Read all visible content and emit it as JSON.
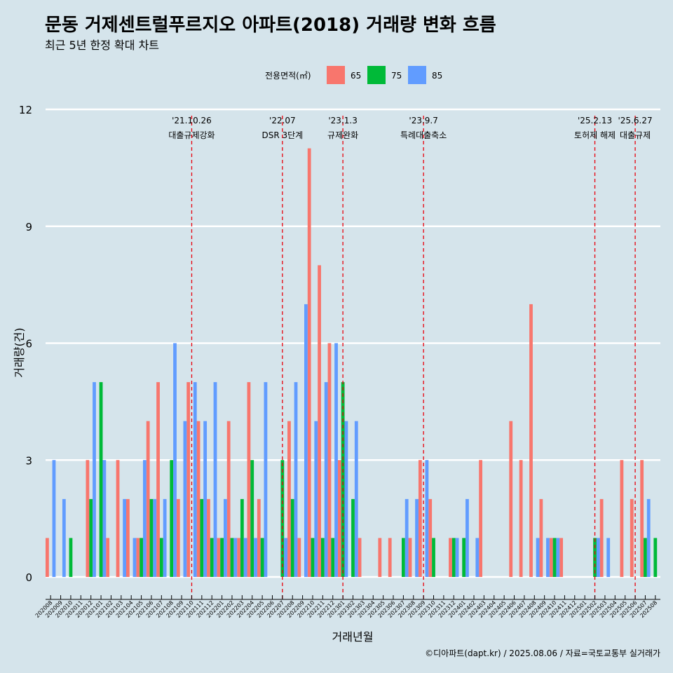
{
  "title": "문동 거제센트럴푸르지오 아파트(2018) 거래량 변화 흐름",
  "subtitle": "최근 5년 한정 확대 차트",
  "caption": "©디아파트(dapt.kr) / 2025.08.06 / 자료=국토교통부 실거래가",
  "colors": {
    "65": "#f8766d",
    "75": "#00ba38",
    "85": "#619cff",
    "background": "#d5e4eb",
    "grid": "#ffffff",
    "event_line": "#e8000b"
  },
  "chart_data": {
    "type": "bar",
    "xlabel": "거래년월",
    "ylabel": "거래량(건)",
    "ylim": [
      0,
      12
    ],
    "y_ticks": [
      0,
      3,
      6,
      9,
      12
    ],
    "grid": true,
    "legend": {
      "title": "전용면적(㎡)",
      "placement": "top",
      "entries": [
        "65",
        "75",
        "85"
      ]
    },
    "categories": [
      "202008",
      "202009",
      "202010",
      "202011",
      "202012",
      "202101",
      "202102",
      "202103",
      "202104",
      "202105",
      "202106",
      "202107",
      "202108",
      "202109",
      "202110",
      "202111",
      "202112",
      "202201",
      "202202",
      "202203",
      "202204",
      "202205",
      "202206",
      "202207",
      "202208",
      "202209",
      "202210",
      "202211",
      "202212",
      "202301",
      "202302",
      "202303",
      "202304",
      "202305",
      "202306",
      "202307",
      "202308",
      "202309",
      "202310",
      "202311",
      "202312",
      "202401",
      "202402",
      "202403",
      "202404",
      "202405",
      "202406",
      "202407",
      "202408",
      "202409",
      "202410",
      "202411",
      "202412",
      "202501",
      "202502",
      "202503",
      "202504",
      "202505",
      "202506",
      "202507",
      "202508"
    ],
    "series": [
      {
        "name": "65",
        "values": [
          1,
          0,
          0,
          0,
          3,
          0,
          1,
          3,
          2,
          1,
          4,
          5,
          0,
          2,
          5,
          4,
          2,
          1,
          4,
          1,
          5,
          2,
          0,
          0,
          4,
          1,
          11,
          8,
          6,
          3,
          0,
          1,
          0,
          1,
          1,
          0,
          1,
          3,
          2,
          0,
          1,
          0,
          0,
          3,
          0,
          0,
          4,
          3,
          7,
          2,
          1,
          1,
          0,
          0,
          0,
          2,
          0,
          3,
          2,
          3,
          0
        ]
      },
      {
        "name": "75",
        "values": [
          0,
          0,
          1,
          0,
          2,
          5,
          0,
          0,
          0,
          1,
          2,
          1,
          3,
          0,
          0,
          2,
          1,
          1,
          1,
          2,
          3,
          1,
          0,
          3,
          2,
          0,
          1,
          1,
          1,
          5,
          2,
          0,
          0,
          0,
          0,
          1,
          0,
          0,
          1,
          0,
          1,
          1,
          0,
          0,
          0,
          0,
          0,
          0,
          0,
          0,
          1,
          0,
          0,
          0,
          1,
          0,
          0,
          0,
          0,
          1,
          1
        ]
      },
      {
        "name": "85",
        "values": [
          3,
          2,
          0,
          0,
          5,
          3,
          0,
          2,
          1,
          3,
          2,
          2,
          6,
          4,
          5,
          4,
          5,
          2,
          1,
          1,
          1,
          5,
          0,
          1,
          5,
          7,
          4,
          5,
          6,
          4,
          4,
          0,
          0,
          0,
          0,
          2,
          2,
          3,
          0,
          0,
          1,
          2,
          1,
          0,
          0,
          0,
          0,
          0,
          1,
          1,
          1,
          0,
          0,
          0,
          1,
          1,
          0,
          0,
          0,
          2,
          0
        ]
      }
    ],
    "events": [
      {
        "date": "'21.10.26",
        "label": "대출규제강화",
        "category": "202110"
      },
      {
        "date": "'22.07",
        "label": "DSR 3단계",
        "category": "202207"
      },
      {
        "date": "'23.1.3",
        "label": "규제완화",
        "category": "202301"
      },
      {
        "date": "'23.9.7",
        "label": "특례대출축소",
        "category": "202309"
      },
      {
        "date": "'25.2.13",
        "label": "토허제 해제",
        "category": "202502"
      },
      {
        "date": "'25.6.27",
        "label": "대출규제",
        "category": "202506"
      }
    ]
  }
}
